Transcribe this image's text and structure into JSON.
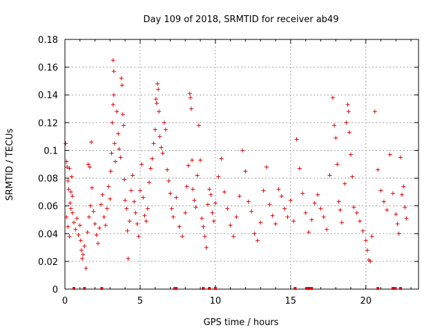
{
  "chart_data": {
    "type": "scatter",
    "title": "Day 109 of 2018, SRMTID for receiver ab49",
    "xlabel": "GPS time / hours",
    "ylabel": "SRMTID / TECUs",
    "xlim": [
      0,
      23.5
    ],
    "ylim": [
      0,
      0.18
    ],
    "x_ticks": [
      0,
      5,
      10,
      15,
      20
    ],
    "x_tick_labels": [
      "0",
      "5",
      "10",
      "15",
      "20"
    ],
    "y_ticks": [
      0,
      0.02,
      0.04,
      0.06,
      0.08,
      0.1,
      0.12,
      0.14,
      0.16,
      0.18
    ],
    "y_tick_labels": [
      "0",
      "0.02",
      "0.04",
      "0.06",
      "0.08",
      "0.1",
      "0.12",
      "0.14",
      "0.16",
      "0.18"
    ],
    "grid": true,
    "marker": "+",
    "marker_color": "#dd0000",
    "series": [
      {
        "name": "SRMTID",
        "points": [
          [
            0.05,
            0.105
          ],
          [
            0.1,
            0.092
          ],
          [
            0.15,
            0.088
          ],
          [
            0.2,
            0.078
          ],
          [
            0.25,
            0.072
          ],
          [
            0.3,
            0.087
          ],
          [
            0.35,
            0.062
          ],
          [
            0.4,
            0.058
          ],
          [
            0.45,
            0.081
          ],
          [
            0.5,
            0.067
          ],
          [
            0.1,
            0.052
          ],
          [
            0.2,
            0.045
          ],
          [
            0.3,
            0.038
          ],
          [
            0.4,
            0.07
          ],
          [
            0.5,
            0.055
          ],
          [
            0.6,
            0.048
          ],
          [
            0.7,
            0.043
          ],
          [
            0.8,
            0.051
          ],
          [
            0.9,
            0.039
          ],
          [
            1.0,
            0.046
          ],
          [
            1.05,
            0.035
          ],
          [
            1.1,
            0.028
          ],
          [
            1.15,
            0.022
          ],
          [
            1.2,
            0.025
          ],
          [
            1.3,
            0.031
          ],
          [
            1.4,
            0.015
          ],
          [
            1.5,
            0.041
          ],
          [
            1.6,
            0.052
          ],
          [
            1.7,
            0.06
          ],
          [
            1.8,
            0.073
          ],
          [
            1.55,
            0.09
          ],
          [
            1.65,
            0.088
          ],
          [
            1.75,
            0.106
          ],
          [
            1.9,
            0.056
          ],
          [
            2.0,
            0.047
          ],
          [
            2.1,
            0.039
          ],
          [
            2.2,
            0.033
          ],
          [
            2.3,
            0.044
          ],
          [
            2.4,
            0.061
          ],
          [
            2.5,
            0.068
          ],
          [
            2.6,
            0.052
          ],
          [
            2.7,
            0.046
          ],
          [
            2.8,
            0.058
          ],
          [
            2.9,
            0.074
          ],
          [
            3.0,
            0.065
          ],
          [
            3.05,
            0.085
          ],
          [
            3.1,
            0.098
          ],
          [
            3.15,
            0.12
          ],
          [
            3.2,
            0.133
          ],
          [
            3.25,
            0.14
          ],
          [
            3.2,
            0.165
          ],
          [
            3.25,
            0.157
          ],
          [
            3.3,
            0.105
          ],
          [
            3.35,
            0.092
          ],
          [
            3.45,
            0.128
          ],
          [
            3.55,
            0.112
          ],
          [
            3.6,
            0.101
          ],
          [
            3.7,
            0.095
          ],
          [
            3.75,
            0.152
          ],
          [
            3.8,
            0.147
          ],
          [
            3.85,
            0.126
          ],
          [
            3.9,
            0.118
          ],
          [
            3.95,
            0.079
          ],
          [
            4.0,
            0.064
          ],
          [
            4.1,
            0.058
          ],
          [
            4.15,
            0.042
          ],
          [
            4.2,
            0.022
          ],
          [
            4.3,
            0.049
          ],
          [
            4.4,
            0.071
          ],
          [
            4.5,
            0.082
          ],
          [
            4.6,
            0.063
          ],
          [
            4.7,
            0.055
          ],
          [
            4.8,
            0.047
          ],
          [
            4.9,
            0.038
          ],
          [
            5.0,
            0.071
          ],
          [
            5.1,
            0.09
          ],
          [
            5.2,
            0.066
          ],
          [
            5.3,
            0.053
          ],
          [
            5.4,
            0.049
          ],
          [
            5.5,
            0.058
          ],
          [
            5.6,
            0.077
          ],
          [
            5.7,
            0.087
          ],
          [
            5.8,
            0.094
          ],
          [
            5.9,
            0.105
          ],
          [
            6.0,
            0.115
          ],
          [
            6.05,
            0.137
          ],
          [
            6.1,
            0.134
          ],
          [
            6.15,
            0.148
          ],
          [
            6.2,
            0.144
          ],
          [
            6.25,
            0.128
          ],
          [
            6.3,
            0.11
          ],
          [
            6.4,
            0.102
          ],
          [
            6.5,
            0.098
          ],
          [
            6.6,
            0.12
          ],
          [
            6.7,
            0.115
          ],
          [
            6.8,
            0.086
          ],
          [
            6.9,
            0.078
          ],
          [
            7.0,
            0.069
          ],
          [
            7.1,
            0.058
          ],
          [
            7.2,
            0.052
          ],
          [
            7.4,
            0.066
          ],
          [
            7.6,
            0.045
          ],
          [
            7.8,
            0.038
          ],
          [
            8.0,
            0.055
          ],
          [
            8.1,
            0.074
          ],
          [
            8.2,
            0.089
          ],
          [
            8.3,
            0.141
          ],
          [
            8.35,
            0.138
          ],
          [
            8.4,
            0.13
          ],
          [
            8.45,
            0.093
          ],
          [
            8.5,
            0.072
          ],
          [
            8.6,
            0.064
          ],
          [
            8.7,
            0.059
          ],
          [
            8.8,
            0.082
          ],
          [
            8.9,
            0.118
          ],
          [
            9.0,
            0.093
          ],
          [
            9.1,
            0.051
          ],
          [
            9.2,
            0.045
          ],
          [
            9.3,
            0.038
          ],
          [
            9.4,
            0.03
          ],
          [
            9.5,
            0.061
          ],
          [
            9.6,
            0.072
          ],
          [
            9.7,
            0.068
          ],
          [
            9.8,
            0.055
          ],
          [
            9.9,
            0.049
          ],
          [
            10.0,
            0.062
          ],
          [
            10.2,
            0.081
          ],
          [
            10.4,
            0.094
          ],
          [
            10.6,
            0.07
          ],
          [
            10.8,
            0.058
          ],
          [
            11.0,
            0.046
          ],
          [
            11.2,
            0.038
          ],
          [
            11.4,
            0.052
          ],
          [
            11.6,
            0.067
          ],
          [
            11.8,
            0.1
          ],
          [
            12.0,
            0.085
          ],
          [
            12.2,
            0.063
          ],
          [
            12.4,
            0.056
          ],
          [
            12.6,
            0.04
          ],
          [
            12.8,
            0.035
          ],
          [
            13.0,
            0.048
          ],
          [
            13.2,
            0.071
          ],
          [
            13.4,
            0.088
          ],
          [
            13.6,
            0.061
          ],
          [
            13.8,
            0.053
          ],
          [
            14.0,
            0.047
          ],
          [
            14.2,
            0.072
          ],
          [
            14.4,
            0.067
          ],
          [
            14.6,
            0.058
          ],
          [
            14.8,
            0.052
          ],
          [
            15.0,
            0.064
          ],
          [
            15.2,
            0.049
          ],
          [
            15.4,
            0.108
          ],
          [
            15.6,
            0.087
          ],
          [
            15.8,
            0.069
          ],
          [
            16.0,
            0.055
          ],
          [
            16.2,
            0.041
          ],
          [
            16.4,
            0.05
          ],
          [
            16.6,
            0.062
          ],
          [
            16.8,
            0.068
          ],
          [
            17.0,
            0.058
          ],
          [
            17.2,
            0.052
          ],
          [
            17.4,
            0.043
          ],
          [
            17.6,
            0.082
          ],
          [
            17.8,
            0.138
          ],
          [
            17.9,
            0.118
          ],
          [
            18.0,
            0.109
          ],
          [
            18.1,
            0.09
          ],
          [
            18.2,
            0.063
          ],
          [
            18.3,
            0.057
          ],
          [
            18.4,
            0.048
          ],
          [
            18.6,
            0.076
          ],
          [
            18.7,
            0.12
          ],
          [
            18.8,
            0.133
          ],
          [
            18.85,
            0.128
          ],
          [
            18.9,
            0.113
          ],
          [
            19.0,
            0.097
          ],
          [
            19.1,
            0.081
          ],
          [
            19.2,
            0.059
          ],
          [
            19.4,
            0.055
          ],
          [
            19.6,
            0.049
          ],
          [
            19.8,
            0.042
          ],
          [
            20.0,
            0.035
          ],
          [
            20.1,
            0.028
          ],
          [
            20.2,
            0.021
          ],
          [
            20.3,
            0.02
          ],
          [
            20.4,
            0.038
          ],
          [
            20.6,
            0.128
          ],
          [
            20.8,
            0.086
          ],
          [
            21.0,
            0.071
          ],
          [
            21.2,
            0.063
          ],
          [
            21.4,
            0.057
          ],
          [
            21.6,
            0.097
          ],
          [
            21.8,
            0.069
          ],
          [
            22.0,
            0.054
          ],
          [
            22.1,
            0.047
          ],
          [
            22.2,
            0.04
          ],
          [
            22.3,
            0.095
          ],
          [
            22.4,
            0.068
          ],
          [
            22.5,
            0.074
          ],
          [
            22.6,
            0.059
          ],
          [
            22.7,
            0.051
          ]
        ]
      },
      {
        "name": "zero-level markers",
        "x": [
          0.6,
          1.3,
          2.45,
          7.3,
          7.4,
          9.2,
          9.6,
          10.0,
          15.3,
          16.1,
          16.25,
          16.4,
          20.8,
          21.8,
          21.95,
          22.3
        ]
      }
    ]
  }
}
